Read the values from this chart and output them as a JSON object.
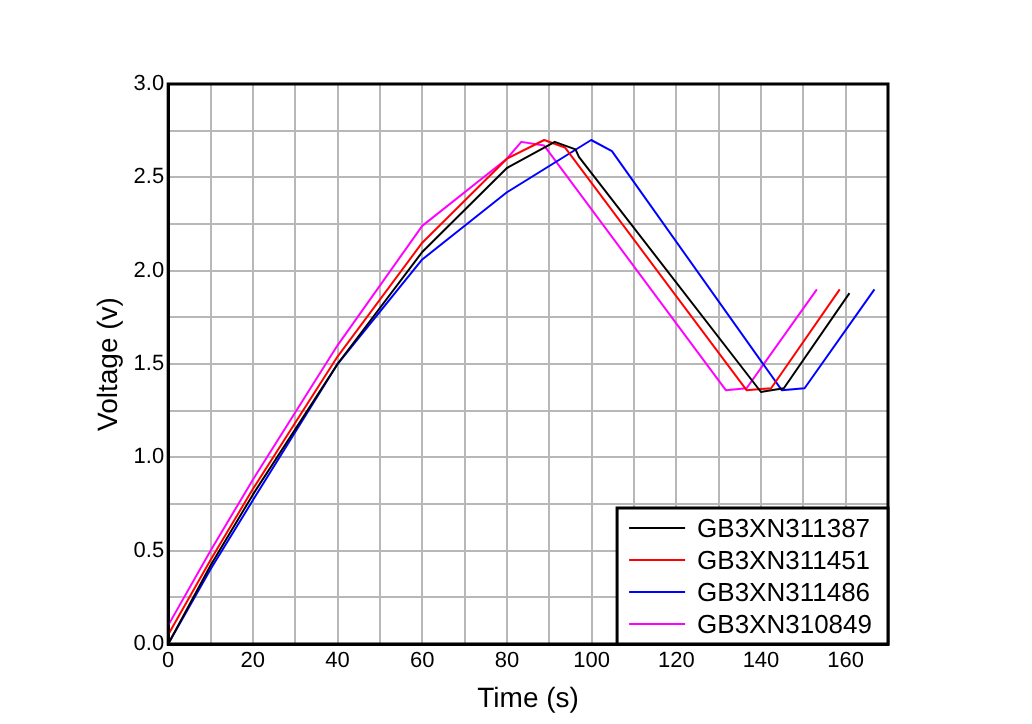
{
  "chart_data": {
    "type": "line",
    "xlabel": "Time (s)",
    "ylabel": "Voltage (v)",
    "xlim": [
      0,
      170
    ],
    "xticks": [
      0,
      {
        "value": 10,
        "label": null
      },
      20,
      {
        "value": 30,
        "label": null
      },
      40,
      {
        "value": 50,
        "label": null
      },
      60,
      {
        "value": 70,
        "label": null
      },
      80,
      {
        "value": 90,
        "label": null
      },
      100,
      {
        "value": 110,
        "label": null
      },
      120,
      {
        "value": 130,
        "label": null
      },
      140,
      {
        "value": 150,
        "label": null
      },
      160
    ],
    "ylim": [
      0,
      3
    ],
    "yticks": [
      {
        "value": 0,
        "label": "0.0"
      },
      {
        "value": 0.25,
        "label": null
      },
      0.5,
      {
        "value": 0.75,
        "label": null
      },
      {
        "value": 1,
        "label": "1.0"
      },
      {
        "value": 1.25,
        "label": null
      },
      1.5,
      {
        "value": 1.75,
        "label": null
      },
      {
        "value": 2,
        "label": "2.0"
      },
      {
        "value": 2.25,
        "label": null
      },
      2.5,
      {
        "value": 2.75,
        "label": null
      },
      {
        "value": 3,
        "label": "3.0"
      }
    ],
    "grid": true,
    "legend": "bottom right",
    "marker": "none",
    "line_style": "solid",
    "series": [
      {
        "name": "GB3XN311387",
        "color": "#000000",
        "x": [
          0,
          10,
          20,
          40,
          60,
          80,
          91.3,
          96.2,
          97,
          140,
          145.4,
          160.9
        ],
        "values": [
          0,
          0.42,
          0.8,
          1.5,
          2.1,
          2.55,
          2.69,
          2.65,
          2.61,
          1.35,
          1.37,
          1.88
        ]
      },
      {
        "name": "GB3XN311451",
        "color": "#ff0000",
        "x": [
          0,
          10,
          20,
          40,
          60,
          80,
          88.8,
          93.7,
          136.6,
          142.4,
          158.6
        ],
        "values": [
          0.05,
          0.45,
          0.83,
          1.54,
          2.15,
          2.6,
          2.7,
          2.66,
          1.36,
          1.37,
          1.9
        ]
      },
      {
        "name": "GB3XN311486",
        "color": "#0000ff",
        "x": [
          0,
          10,
          20,
          40,
          60,
          80,
          99.9,
          104.8,
          144.9,
          150.3,
          166.8
        ],
        "values": [
          0,
          0.4,
          0.77,
          1.5,
          2.06,
          2.42,
          2.7,
          2.64,
          1.36,
          1.37,
          1.9
        ]
      },
      {
        "name": "GB3XN310849",
        "color": "#ff00ff",
        "x": [
          0,
          10,
          20,
          40,
          60,
          80,
          83.4,
          88.8,
          131.7,
          136.6,
          153.2
        ],
        "values": [
          0.1,
          0.5,
          0.88,
          1.6,
          2.24,
          2.6,
          2.69,
          2.67,
          1.36,
          1.37,
          1.9
        ]
      }
    ]
  }
}
